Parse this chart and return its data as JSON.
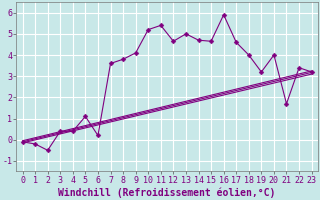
{
  "title": "",
  "xlabel": "Windchill (Refroidissement éolien,°C)",
  "ylabel": "",
  "bg_color": "#c8e8e8",
  "grid_color": "#ffffff",
  "line_color": "#800080",
  "xlim": [
    -0.5,
    23.5
  ],
  "ylim": [
    -1.5,
    6.5
  ],
  "yticks": [
    -1,
    0,
    1,
    2,
    3,
    4,
    5,
    6
  ],
  "xticks": [
    0,
    1,
    2,
    3,
    4,
    5,
    6,
    7,
    8,
    9,
    10,
    11,
    12,
    13,
    14,
    15,
    16,
    17,
    18,
    19,
    20,
    21,
    22,
    23
  ],
  "series1_x": [
    0,
    1,
    2,
    3,
    4,
    5,
    6,
    7,
    8,
    9,
    10,
    11,
    12,
    13,
    14,
    15,
    16,
    17,
    18,
    19,
    20,
    21,
    22,
    23
  ],
  "series1_y": [
    -0.1,
    -0.2,
    -0.5,
    0.4,
    0.4,
    1.1,
    0.2,
    3.6,
    3.8,
    4.1,
    5.2,
    5.4,
    4.65,
    5.0,
    4.7,
    4.65,
    5.9,
    4.6,
    4.0,
    3.2,
    4.0,
    1.7,
    3.4,
    3.2
  ],
  "series2_x": [
    0,
    23
  ],
  "series2_y": [
    -0.05,
    3.25
  ],
  "series3_x": [
    0,
    23
  ],
  "series3_y": [
    -0.1,
    3.18
  ],
  "series4_x": [
    0,
    23
  ],
  "series4_y": [
    -0.15,
    3.1
  ],
  "xlabel_fontsize": 7,
  "tick_fontsize": 6,
  "label_color": "#800080"
}
